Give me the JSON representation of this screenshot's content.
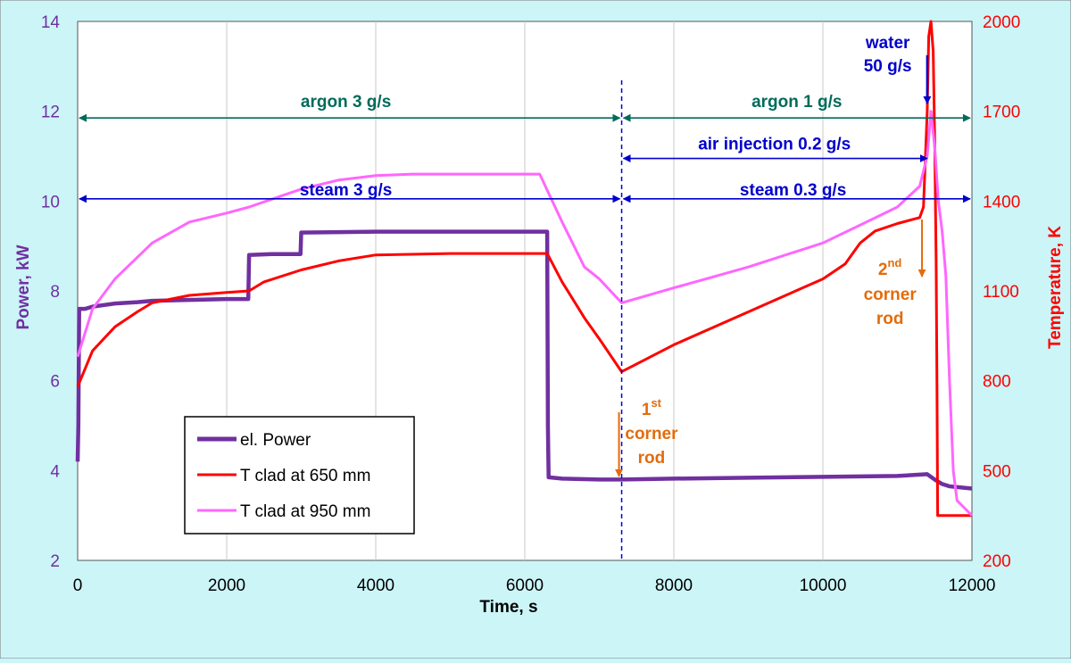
{
  "chart_data": {
    "type": "line",
    "title": "",
    "xlabel": "Time, s",
    "ylabel_left": "Power, kW",
    "ylabel_right": "Temperature, K",
    "xlim": [
      0,
      12000
    ],
    "ylim_left": [
      2,
      14
    ],
    "ylim_right": [
      200,
      2000
    ],
    "x_ticks": [
      "0",
      "2000",
      "4000",
      "6000",
      "8000",
      "10000",
      "12000"
    ],
    "y_left_ticks": [
      "2",
      "4",
      "6",
      "8",
      "10",
      "12",
      "14"
    ],
    "y_right_ticks": [
      "200",
      "500",
      "800",
      "1100",
      "1400",
      "1700",
      "2000"
    ],
    "grid": "vertical",
    "legend_position": "bottom-left",
    "colors": {
      "power": "#7030a0",
      "t650": "#ff0000",
      "t950": "#ff66ff",
      "green": "#006b5a",
      "blue": "#0000cc",
      "orange": "#e36c0a",
      "plot_bg": "#ffffff",
      "page_bg": "#ccf5f8"
    },
    "series": [
      {
        "name": "el. Power",
        "axis": "left",
        "x": [
          0,
          10,
          20,
          100,
          200,
          500,
          800,
          1000,
          1500,
          2000,
          2250,
          2290,
          2300,
          2600,
          2900,
          2990,
          3000,
          4000,
          5000,
          6000,
          6300,
          6310,
          6320,
          6500,
          7000,
          7300,
          8000,
          9000,
          10000,
          11000,
          11400,
          11500,
          11600,
          11700,
          12000
        ],
        "y": [
          4.2,
          5.0,
          7.6,
          7.6,
          7.65,
          7.72,
          7.75,
          7.78,
          7.8,
          7.82,
          7.82,
          7.82,
          8.8,
          8.82,
          8.82,
          8.82,
          9.3,
          9.32,
          9.32,
          9.32,
          9.32,
          5.0,
          3.85,
          3.82,
          3.8,
          3.8,
          3.82,
          3.84,
          3.86,
          3.88,
          3.92,
          3.8,
          3.7,
          3.65,
          3.6
        ]
      },
      {
        "name": "T clad at 650 mm",
        "axis": "right",
        "x": [
          0,
          200,
          500,
          800,
          1000,
          1500,
          2000,
          2300,
          2500,
          3000,
          3500,
          4000,
          5000,
          6000,
          6300,
          6500,
          6800,
          7000,
          7300,
          8000,
          9000,
          9500,
          10000,
          10300,
          10500,
          10700,
          11000,
          11300,
          11350,
          11400,
          11420,
          11450,
          11480,
          11500,
          11520,
          11530,
          11540,
          12000
        ],
        "y": [
          780,
          900,
          980,
          1030,
          1060,
          1085,
          1095,
          1100,
          1130,
          1170,
          1200,
          1220,
          1225,
          1225,
          1225,
          1130,
          1010,
          940,
          830,
          920,
          1030,
          1085,
          1140,
          1190,
          1260,
          1300,
          1325,
          1345,
          1380,
          1700,
          1950,
          2000,
          1900,
          1600,
          1200,
          800,
          350,
          350
        ]
      },
      {
        "name": "T clad at 950 mm",
        "axis": "right",
        "x": [
          0,
          200,
          500,
          1000,
          1500,
          2000,
          2300,
          3000,
          3500,
          4000,
          4500,
          5000,
          6000,
          6200,
          6500,
          6800,
          7000,
          7300,
          8000,
          9000,
          10000,
          10500,
          11000,
          11300,
          11400,
          11450,
          11500,
          11550,
          11600,
          11650,
          11700,
          11750,
          11800,
          12000
        ],
        "y": [
          880,
          1040,
          1140,
          1260,
          1330,
          1360,
          1380,
          1440,
          1470,
          1485,
          1490,
          1490,
          1490,
          1490,
          1330,
          1180,
          1140,
          1060,
          1110,
          1180,
          1260,
          1320,
          1380,
          1450,
          1550,
          1700,
          1580,
          1400,
          1300,
          1150,
          800,
          500,
          400,
          350
        ]
      }
    ],
    "annotations": [
      {
        "id": "argon3",
        "text": "argon 3 g/s",
        "color": "green"
      },
      {
        "id": "argon1",
        "text": "argon 1 g/s",
        "color": "green"
      },
      {
        "id": "steam3",
        "text": "steam 3 g/s",
        "color": "blue"
      },
      {
        "id": "steam03",
        "text": "steam 0.3 g/s",
        "color": "blue"
      },
      {
        "id": "air",
        "text": "air injection 0.2 g/s",
        "color": "blue"
      },
      {
        "id": "water1",
        "text": "water",
        "color": "blue"
      },
      {
        "id": "water2",
        "text": "50 g/s",
        "color": "blue"
      },
      {
        "id": "c1_base",
        "text": "1",
        "sup": "st",
        "color": "orange"
      },
      {
        "id": "c1_corner",
        "text": "corner",
        "color": "orange"
      },
      {
        "id": "c1_rod",
        "text": "rod",
        "color": "orange"
      },
      {
        "id": "c2_base",
        "text": "2",
        "sup": "nd",
        "color": "orange"
      },
      {
        "id": "c2_corner",
        "text": "corner",
        "color": "orange"
      },
      {
        "id": "c2_rod",
        "text": "rod",
        "color": "orange"
      }
    ]
  }
}
